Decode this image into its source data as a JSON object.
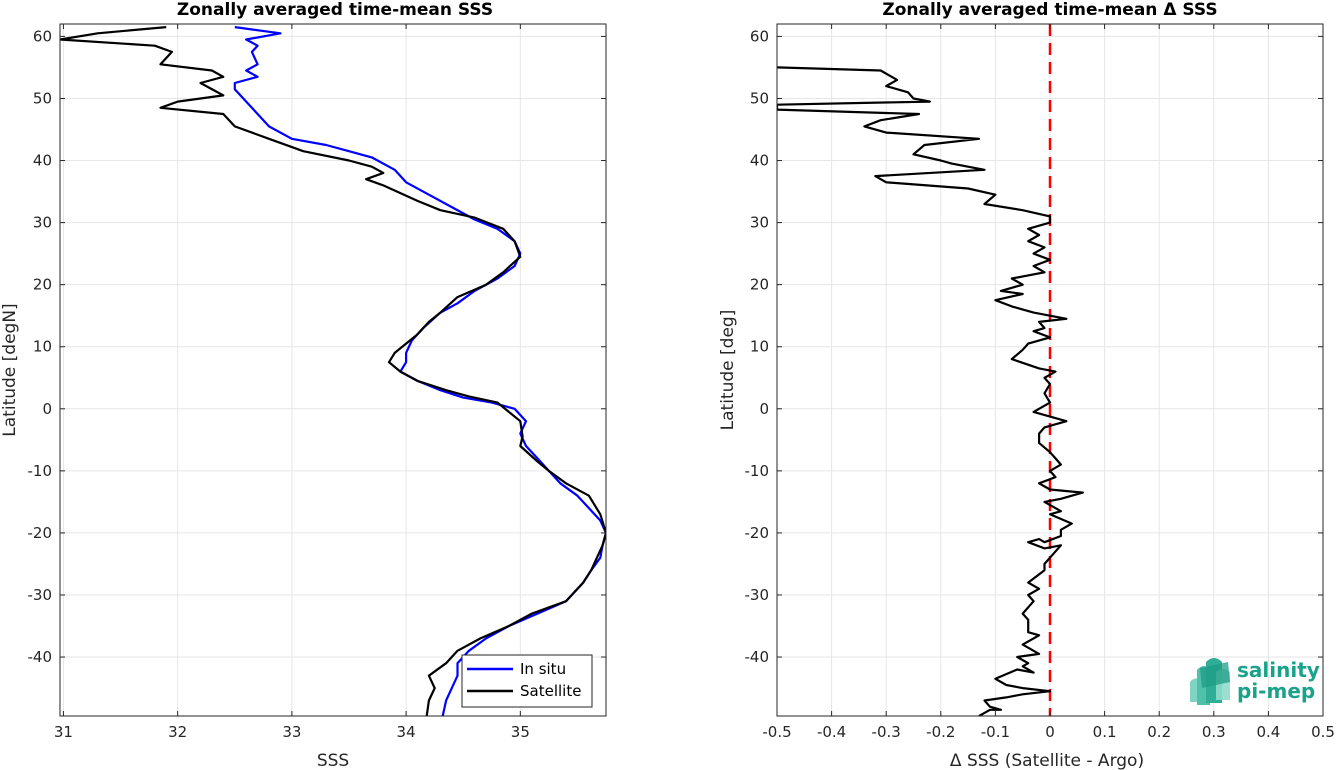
{
  "chart_data": [
    {
      "type": "line",
      "title": "Zonally averaged time-mean SSS",
      "xlabel": "SSS",
      "ylabel": "Latitude [degN]",
      "xlim": [
        30.97,
        35.75
      ],
      "ylim": [
        -49.5,
        62
      ],
      "xticks": [
        31,
        32,
        33,
        34,
        35
      ],
      "yticks": [
        60,
        50,
        40,
        30,
        20,
        10,
        0,
        -10,
        -20,
        -30,
        -40
      ],
      "grid": true,
      "legend_position": "bottom-right",
      "series": [
        {
          "name": "In situ",
          "color": "#0000ff",
          "points": [
            [
              32.5,
              61.5
            ],
            [
              32.9,
              60.5
            ],
            [
              32.6,
              59.5
            ],
            [
              32.7,
              58.5
            ],
            [
              32.65,
              57.5
            ],
            [
              32.7,
              55.5
            ],
            [
              32.6,
              54.5
            ],
            [
              32.7,
              53.5
            ],
            [
              32.5,
              52.5
            ],
            [
              32.5,
              51.5
            ],
            [
              32.6,
              49.5
            ],
            [
              32.7,
              47.5
            ],
            [
              32.8,
              45.5
            ],
            [
              33.0,
              43.5
            ],
            [
              33.3,
              42.5
            ],
            [
              33.5,
              41.5
            ],
            [
              33.7,
              40.5
            ],
            [
              33.9,
              38.5
            ],
            [
              34.0,
              36.5
            ],
            [
              34.2,
              34.5
            ],
            [
              34.4,
              32.5
            ],
            [
              34.6,
              30.5
            ],
            [
              34.8,
              29
            ],
            [
              34.95,
              27
            ],
            [
              35.0,
              25
            ],
            [
              34.95,
              23
            ],
            [
              34.8,
              21
            ],
            [
              34.6,
              19
            ],
            [
              34.45,
              17
            ],
            [
              34.3,
              15.5
            ],
            [
              34.15,
              13
            ],
            [
              34.05,
              11
            ],
            [
              34.0,
              9
            ],
            [
              34.0,
              7.5
            ],
            [
              33.95,
              6
            ],
            [
              34.1,
              4.5
            ],
            [
              34.3,
              3
            ],
            [
              34.5,
              1.8
            ],
            [
              34.75,
              1
            ],
            [
              34.95,
              0
            ],
            [
              35.05,
              -2
            ],
            [
              35.0,
              -4
            ],
            [
              35.05,
              -6
            ],
            [
              35.15,
              -8
            ],
            [
              35.25,
              -10
            ],
            [
              35.35,
              -12
            ],
            [
              35.5,
              -14
            ],
            [
              35.6,
              -16
            ],
            [
              35.7,
              -18
            ],
            [
              35.75,
              -20
            ],
            [
              35.72,
              -22
            ],
            [
              35.7,
              -24
            ],
            [
              35.62,
              -26
            ],
            [
              35.55,
              -28
            ],
            [
              35.4,
              -31
            ],
            [
              35.15,
              -33
            ],
            [
              34.9,
              -35
            ],
            [
              34.7,
              -37
            ],
            [
              34.55,
              -39
            ],
            [
              34.45,
              -41
            ],
            [
              34.45,
              -43
            ],
            [
              34.4,
              -45
            ],
            [
              34.35,
              -47
            ],
            [
              34.32,
              -49.5
            ]
          ]
        },
        {
          "name": "Satellite",
          "color": "#000000",
          "points": [
            [
              31.9,
              61.5
            ],
            [
              31.3,
              60.5
            ],
            [
              30.97,
              59.5
            ],
            [
              31.8,
              58.5
            ],
            [
              31.95,
              57.5
            ],
            [
              31.85,
              55.5
            ],
            [
              32.3,
              54.5
            ],
            [
              32.4,
              53.5
            ],
            [
              32.2,
              52.5
            ],
            [
              32.4,
              50.5
            ],
            [
              32.0,
              49.5
            ],
            [
              31.85,
              48.5
            ],
            [
              32.4,
              47.5
            ],
            [
              32.5,
              45.5
            ],
            [
              32.8,
              43.5
            ],
            [
              33.1,
              41.5
            ],
            [
              33.5,
              40
            ],
            [
              33.7,
              39
            ],
            [
              33.8,
              38
            ],
            [
              33.65,
              37
            ],
            [
              33.8,
              36
            ],
            [
              34.1,
              33.5
            ],
            [
              34.3,
              32
            ],
            [
              34.6,
              30.8
            ],
            [
              34.85,
              29
            ],
            [
              34.95,
              27
            ],
            [
              35.0,
              24.5
            ],
            [
              34.85,
              22
            ],
            [
              34.7,
              20
            ],
            [
              34.45,
              18
            ],
            [
              34.3,
              15.5
            ],
            [
              34.2,
              14
            ],
            [
              34.1,
              12
            ],
            [
              34.0,
              10.5
            ],
            [
              33.9,
              9
            ],
            [
              33.85,
              7.5
            ],
            [
              33.95,
              6
            ],
            [
              34.1,
              4.5
            ],
            [
              34.35,
              3
            ],
            [
              34.55,
              2
            ],
            [
              34.8,
              1
            ],
            [
              35.0,
              -2
            ],
            [
              35.02,
              -4.5
            ],
            [
              35.0,
              -6
            ],
            [
              35.15,
              -8.5
            ],
            [
              35.25,
              -10
            ],
            [
              35.4,
              -12
            ],
            [
              35.6,
              -14
            ],
            [
              35.7,
              -17
            ],
            [
              35.75,
              -20
            ],
            [
              35.72,
              -22
            ],
            [
              35.62,
              -26
            ],
            [
              35.55,
              -28
            ],
            [
              35.4,
              -31
            ],
            [
              35.1,
              -33
            ],
            [
              34.9,
              -35
            ],
            [
              34.65,
              -37
            ],
            [
              34.45,
              -39
            ],
            [
              34.35,
              -41
            ],
            [
              34.2,
              -43
            ],
            [
              34.25,
              -45
            ],
            [
              34.2,
              -47
            ],
            [
              34.18,
              -49.5
            ]
          ]
        }
      ]
    },
    {
      "type": "line",
      "title": "Zonally averaged time-mean Δ SSS",
      "xlabel": "Δ SSS (Satellite - Argo)",
      "ylabel": "Latitude [deg]",
      "xlim": [
        -0.5,
        0.5
      ],
      "ylim": [
        -49.5,
        62
      ],
      "xticks": [
        -0.5,
        -0.4,
        -0.3,
        -0.2,
        -0.1,
        0,
        0.1,
        0.2,
        0.3,
        0.4,
        0.5
      ],
      "xtick_labels": [
        "-0.5",
        "-0.4",
        "-0.3",
        "-0.2",
        "-0.1",
        "0",
        "0.1",
        "0.2",
        "0.3",
        "0.4",
        "0.5"
      ],
      "yticks": [
        60,
        50,
        40,
        30,
        20,
        10,
        0,
        -10,
        -20,
        -30,
        -40
      ],
      "grid": true,
      "reference_line": {
        "x": 0,
        "color": "#ff0000",
        "style": "dashed"
      },
      "series": [
        {
          "color": "#000000",
          "points": [
            [
              -0.5,
              55
            ],
            [
              -0.31,
              54.5
            ],
            [
              -0.28,
              53
            ],
            [
              -0.3,
              52
            ],
            [
              -0.26,
              51
            ],
            [
              -0.25,
              50
            ],
            [
              -0.22,
              49.5
            ],
            [
              -0.5,
              49
            ],
            [
              -0.5,
              48.2
            ],
            [
              -0.24,
              47.5
            ],
            [
              -0.31,
              46.5
            ],
            [
              -0.34,
              45.5
            ],
            [
              -0.3,
              44.5
            ],
            [
              -0.13,
              43.5
            ],
            [
              -0.23,
              42.5
            ],
            [
              -0.25,
              41
            ],
            [
              -0.2,
              40
            ],
            [
              -0.18,
              39.5
            ],
            [
              -0.12,
              38.5
            ],
            [
              -0.32,
              37.5
            ],
            [
              -0.3,
              36.5
            ],
            [
              -0.15,
              35.5
            ],
            [
              -0.1,
              34.5
            ],
            [
              -0.12,
              33
            ],
            [
              -0.05,
              32
            ],
            [
              0.0,
              31
            ],
            [
              0.0,
              30
            ],
            [
              -0.04,
              29
            ],
            [
              -0.02,
              28
            ],
            [
              -0.04,
              27
            ],
            [
              -0.01,
              26
            ],
            [
              -0.03,
              25
            ],
            [
              0.0,
              24
            ],
            [
              -0.03,
              23
            ],
            [
              -0.01,
              22
            ],
            [
              -0.07,
              21
            ],
            [
              -0.05,
              20
            ],
            [
              -0.09,
              19
            ],
            [
              -0.05,
              18.5
            ],
            [
              -0.1,
              17.5
            ],
            [
              -0.07,
              16.5
            ],
            [
              -0.03,
              15.5
            ],
            [
              0.03,
              14.5
            ],
            [
              -0.02,
              14
            ],
            [
              -0.01,
              13
            ],
            [
              -0.03,
              12.5
            ],
            [
              0.0,
              11.5
            ],
            [
              -0.04,
              10.5
            ],
            [
              -0.05,
              9.5
            ],
            [
              -0.07,
              8
            ],
            [
              -0.02,
              6.5
            ],
            [
              0.01,
              6
            ],
            [
              -0.01,
              5
            ],
            [
              0.0,
              4
            ],
            [
              -0.01,
              2.5
            ],
            [
              0.0,
              1
            ],
            [
              -0.03,
              -0.5
            ],
            [
              0.03,
              -2
            ],
            [
              -0.01,
              -3
            ],
            [
              -0.02,
              -4
            ],
            [
              -0.02,
              -5.5
            ],
            [
              0.0,
              -7
            ],
            [
              0.01,
              -8
            ],
            [
              0.02,
              -9
            ],
            [
              0.0,
              -10
            ],
            [
              0.01,
              -11
            ],
            [
              -0.02,
              -12
            ],
            [
              0.0,
              -13
            ],
            [
              0.06,
              -13.5
            ],
            [
              0.02,
              -14.5
            ],
            [
              -0.01,
              -15
            ],
            [
              0.02,
              -16.5
            ],
            [
              0.0,
              -17
            ],
            [
              0.04,
              -18.5
            ],
            [
              0.02,
              -19.5
            ],
            [
              0.02,
              -20.5
            ],
            [
              -0.01,
              -21.5
            ],
            [
              -0.02,
              -21
            ],
            [
              -0.04,
              -21.5
            ],
            [
              -0.01,
              -22.5
            ],
            [
              0.02,
              -22
            ],
            [
              0.0,
              -24
            ],
            [
              -0.01,
              -25
            ],
            [
              -0.01,
              -26
            ],
            [
              -0.04,
              -28
            ],
            [
              -0.02,
              -29
            ],
            [
              -0.04,
              -30
            ],
            [
              -0.03,
              -31
            ],
            [
              -0.05,
              -33
            ],
            [
              -0.04,
              -34
            ],
            [
              -0.04,
              -36
            ],
            [
              -0.02,
              -36.5
            ],
            [
              -0.05,
              -38
            ],
            [
              -0.02,
              -39.5
            ],
            [
              -0.06,
              -40
            ],
            [
              -0.04,
              -41
            ],
            [
              -0.05,
              -41.5
            ],
            [
              -0.03,
              -42.5
            ],
            [
              -0.06,
              -42
            ],
            [
              -0.1,
              -43.5
            ],
            [
              -0.08,
              -44.5
            ],
            [
              -0.05,
              -45
            ],
            [
              0.0,
              -45.5
            ],
            [
              -0.05,
              -46
            ],
            [
              -0.08,
              -46.5
            ],
            [
              -0.12,
              -47
            ],
            [
              -0.11,
              -48
            ],
            [
              -0.09,
              -48.5
            ],
            [
              -0.11,
              -48.5
            ],
            [
              -0.12,
              -49
            ],
            [
              -0.13,
              -49.5
            ]
          ]
        }
      ]
    }
  ],
  "logo": {
    "line1": "salinity",
    "line2": "pi-mep",
    "color": "#1aa38a"
  }
}
